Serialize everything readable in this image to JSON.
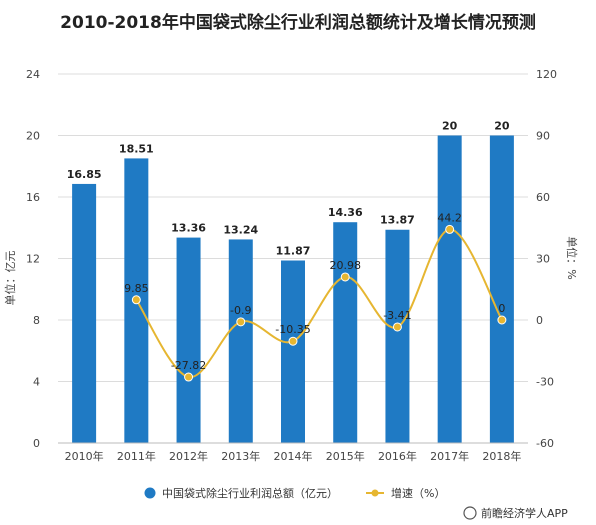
{
  "chart_data": {
    "type": "bar",
    "title": "2010-2018年中国袋式除尘行业利润总额统计及增长情况预测",
    "categories": [
      "2010年",
      "2011年",
      "2012年",
      "2013年",
      "2014年",
      "2015年",
      "2016年",
      "2017年",
      "2018年"
    ],
    "series": [
      {
        "name": "中国袋式除尘行业利润总额（亿元）",
        "type": "bar",
        "axis": "left",
        "values": [
          16.85,
          18.51,
          13.36,
          13.24,
          11.87,
          14.36,
          13.87,
          20,
          20
        ],
        "labels": [
          "16.85",
          "18.51",
          "13.36",
          "13.24",
          "11.87",
          "14.36",
          "13.87",
          "20",
          "20"
        ]
      },
      {
        "name": "增速（%）",
        "type": "line",
        "axis": "right",
        "values": [
          null,
          9.85,
          -27.82,
          -0.9,
          -10.35,
          20.98,
          -3.41,
          44.2,
          0
        ],
        "labels": [
          "",
          "9.85",
          "-27.82",
          "-0.9",
          "-10.35",
          "20.98",
          "-3.41",
          "44.2",
          "0"
        ]
      }
    ],
    "ylabel": "单位：亿元",
    "y2label": "单位：%",
    "ylim": [
      0,
      24
    ],
    "yticks": [
      "0",
      "4",
      "8",
      "12",
      "16",
      "20",
      "24"
    ],
    "y2lim": [
      -60,
      120
    ],
    "y2ticks": [
      "-60",
      "-30",
      "0",
      "30",
      "60",
      "90",
      "120"
    ],
    "grid": true,
    "legend_position": "bottom",
    "colors": {
      "bar": "#1f7ac4",
      "line": "#e6b631"
    }
  },
  "source": "前瞻经济学人APP"
}
